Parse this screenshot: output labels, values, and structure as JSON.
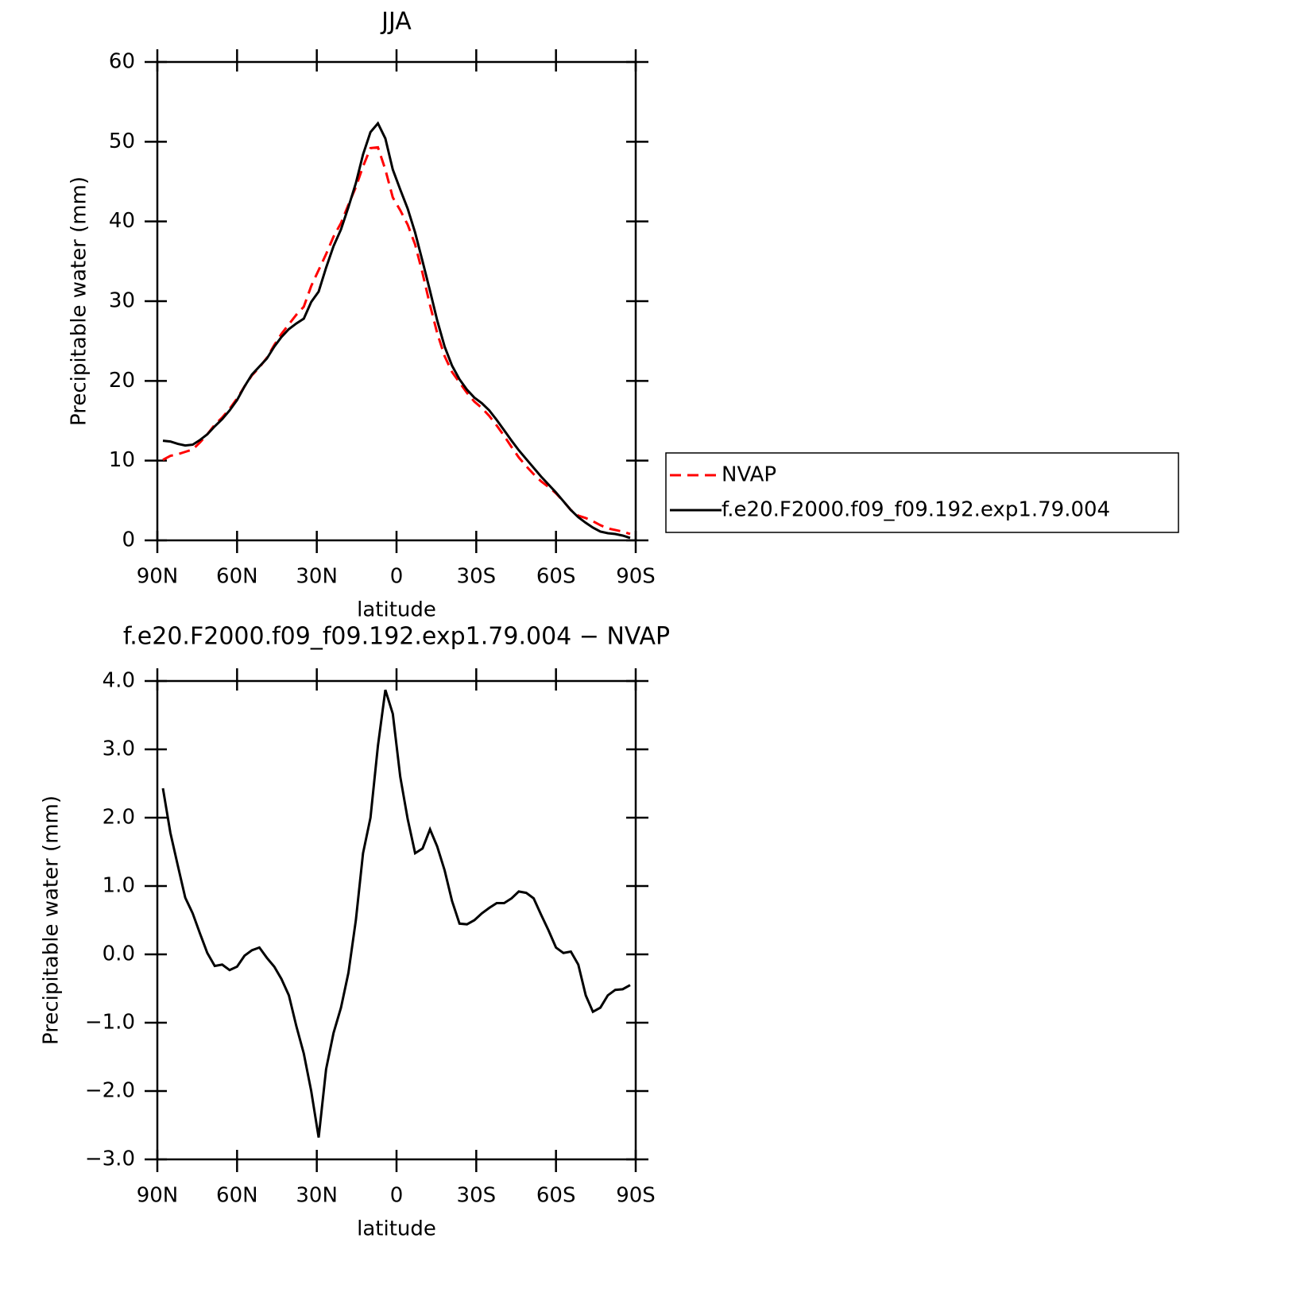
{
  "chart_data": [
    {
      "type": "line",
      "title": "JJA",
      "xlabel": "latitude",
      "ylabel": "Precipitable water (mm)",
      "x": [
        87.9,
        85.1,
        82.3,
        79.5,
        76.7,
        73.9,
        71.2,
        68.4,
        65.6,
        62.8,
        60.0,
        57.2,
        54.4,
        51.6,
        48.8,
        46.0,
        43.3,
        40.5,
        37.7,
        34.9,
        32.1,
        29.3,
        26.5,
        23.7,
        20.9,
        18.1,
        15.3,
        12.6,
        9.8,
        7.0,
        4.2,
        1.4,
        -1.4,
        -4.2,
        -7.0,
        -9.8,
        -12.6,
        -15.3,
        -18.1,
        -20.9,
        -23.7,
        -26.5,
        -29.3,
        -32.1,
        -34.9,
        -37.7,
        -40.5,
        -43.3,
        -46.0,
        -48.8,
        -51.6,
        -54.4,
        -57.2,
        -60.0,
        -62.8,
        -65.6,
        -68.4,
        -71.2,
        -73.9,
        -76.7,
        -79.5,
        -82.3,
        -85.1,
        -87.9
      ],
      "series": [
        {
          "name": "NVAP",
          "color": "#ff0000",
          "line_style": "dashed",
          "values": [
            10.1,
            10.6,
            10.8,
            11.1,
            11.4,
            12.3,
            13.3,
            14.5,
            15.4,
            16.5,
            17.8,
            19.3,
            20.7,
            21.7,
            22.9,
            24.5,
            25.9,
            27.1,
            28.3,
            29.3,
            31.9,
            33.9,
            35.9,
            38.1,
            39.8,
            42.1,
            44.3,
            46.9,
            49.2,
            49.3,
            46.5,
            43.0,
            41.4,
            39.6,
            37.1,
            33.5,
            29.5,
            26.0,
            23.1,
            21.1,
            19.8,
            18.5,
            17.4,
            16.6,
            15.6,
            14.4,
            13.1,
            11.7,
            10.4,
            9.3,
            8.3,
            7.4,
            6.7,
            5.9,
            4.9,
            3.8,
            3.1,
            2.8,
            2.4,
            1.9,
            1.5,
            1.3,
            1.1,
            0.8
          ]
        },
        {
          "name": "f.e20.F2000.f09_f09.192.exp1.79.004",
          "color": "#000000",
          "line_style": "solid",
          "values": [
            12.5,
            12.4,
            12.1,
            11.9,
            12.0,
            12.6,
            13.3,
            14.3,
            15.2,
            16.3,
            17.6,
            19.3,
            20.8,
            21.8,
            22.8,
            24.3,
            25.5,
            26.5,
            27.2,
            27.8,
            29.9,
            31.2,
            34.2,
            36.9,
            39.0,
            41.8,
            44.8,
            48.4,
            51.2,
            52.3,
            50.4,
            46.5,
            44.0,
            41.6,
            38.6,
            35.0,
            31.3,
            27.6,
            24.3,
            21.9,
            20.2,
            18.9,
            17.9,
            17.2,
            16.3,
            15.1,
            13.8,
            12.5,
            11.3,
            10.2,
            9.1,
            8.0,
            7.0,
            6.0,
            4.9,
            3.8,
            2.9,
            2.2,
            1.6,
            1.1,
            0.9,
            0.8,
            0.6,
            0.3
          ]
        }
      ],
      "xlim": [
        90,
        -90
      ],
      "xticks": [
        {
          "value": 90,
          "label": "90N"
        },
        {
          "value": 60,
          "label": "60N"
        },
        {
          "value": 30,
          "label": "30N"
        },
        0,
        {
          "value": -30,
          "label": "30S"
        },
        {
          "value": -60,
          "label": "60S"
        },
        {
          "value": -90,
          "label": "90S"
        }
      ],
      "ylim": [
        0,
        60
      ],
      "yticks": [
        0,
        10,
        20,
        30,
        40,
        50,
        60
      ],
      "legend": "right"
    },
    {
      "type": "line",
      "title": "f.e20.F2000.f09_f09.192.exp1.79.004 − NVAP",
      "xlabel": "latitude",
      "ylabel": "Precipitable water (mm)",
      "x": [
        87.9,
        85.1,
        82.3,
        79.5,
        76.7,
        73.9,
        71.2,
        68.4,
        65.6,
        62.8,
        60.0,
        57.2,
        54.4,
        51.6,
        48.8,
        46.0,
        43.3,
        40.5,
        37.7,
        34.9,
        32.1,
        29.3,
        26.5,
        23.7,
        20.9,
        18.1,
        15.3,
        12.6,
        9.8,
        7.0,
        4.2,
        1.4,
        -1.4,
        -4.2,
        -7.0,
        -9.8,
        -12.6,
        -15.3,
        -18.1,
        -20.9,
        -23.7,
        -26.5,
        -29.3,
        -32.1,
        -34.9,
        -37.7,
        -40.5,
        -43.3,
        -46.0,
        -48.8,
        -51.6,
        -54.4,
        -57.2,
        -60.0,
        -62.8,
        -65.6,
        -68.4,
        -71.2,
        -73.9,
        -76.7,
        -79.5,
        -82.3,
        -85.1,
        -87.9
      ],
      "series": [
        {
          "name": "f.e20.F2000.f09_f09.192.exp1.79.004 − NVAP",
          "color": "#000000",
          "line_style": "solid",
          "values": [
            2.43,
            1.78,
            1.3,
            0.83,
            0.6,
            0.3,
            0.02,
            -0.17,
            -0.15,
            -0.23,
            -0.18,
            -0.02,
            0.06,
            0.1,
            -0.05,
            -0.18,
            -0.36,
            -0.6,
            -1.05,
            -1.45,
            -2.0,
            -2.68,
            -1.68,
            -1.15,
            -0.78,
            -0.27,
            0.5,
            1.48,
            2.0,
            3.05,
            3.87,
            3.52,
            2.6,
            1.98,
            1.48,
            1.55,
            1.83,
            1.58,
            1.23,
            0.78,
            0.45,
            0.44,
            0.5,
            0.6,
            0.68,
            0.75,
            0.75,
            0.82,
            0.92,
            0.9,
            0.82,
            0.58,
            0.35,
            0.1,
            0.02,
            0.04,
            -0.15,
            -0.6,
            -0.84,
            -0.78,
            -0.6,
            -0.52,
            -0.51,
            -0.45
          ]
        }
      ],
      "xlim": [
        90,
        -90
      ],
      "xticks": [
        {
          "value": 90,
          "label": "90N"
        },
        {
          "value": 60,
          "label": "60N"
        },
        {
          "value": 30,
          "label": "30N"
        },
        0,
        {
          "value": -30,
          "label": "30S"
        },
        {
          "value": -60,
          "label": "60S"
        },
        {
          "value": -90,
          "label": "90S"
        }
      ],
      "ylim": [
        -3,
        4
      ],
      "yticks": [
        {
          "value": -3,
          "label": "−3.0"
        },
        {
          "value": -2,
          "label": "−2.0"
        },
        {
          "value": -1,
          "label": "−1.0"
        },
        {
          "value": 0,
          "label": "0.0"
        },
        {
          "value": 1,
          "label": "1.0"
        },
        {
          "value": 2,
          "label": "2.0"
        },
        {
          "value": 3,
          "label": "3.0"
        },
        {
          "value": 4,
          "label": "4.0"
        }
      ]
    }
  ]
}
